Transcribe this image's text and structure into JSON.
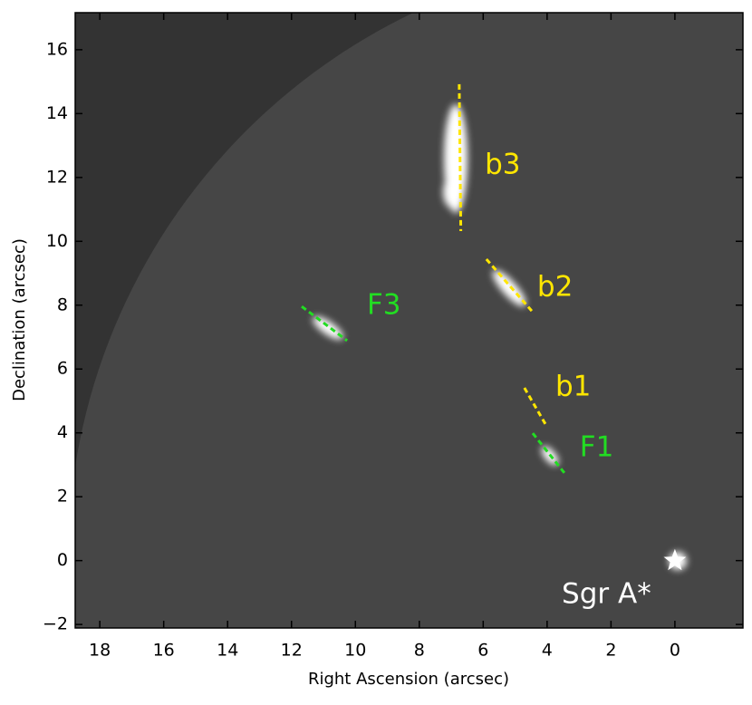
{
  "chart_data": {
    "type": "image",
    "xlabel": "Right Ascension (arcsec)",
    "ylabel": "Declination (arcsec)",
    "xlim": [
      18.77,
      -2.13
    ],
    "ylim": [
      -2.11,
      17.16
    ],
    "xticks": [
      18,
      16,
      14,
      12,
      10,
      8,
      6,
      4,
      2,
      0
    ],
    "yticks": [
      {
        "value": -2,
        "label": "−2"
      },
      0,
      2,
      4,
      6,
      8,
      10,
      12,
      14,
      16
    ],
    "lines": [
      {
        "x": [
          6.75,
          6.7
        ],
        "y": [
          14.92,
          10.32
        ],
        "color": "#ffe600"
      },
      {
        "x": [
          5.9,
          4.48
        ],
        "y": [
          9.44,
          7.82
        ],
        "color": "#ffe600"
      },
      {
        "x": [
          11.68,
          10.26
        ],
        "y": [
          7.96,
          6.89
        ],
        "color": "#22dd22"
      },
      {
        "x": [
          4.71,
          4.02
        ],
        "y": [
          5.41,
          4.22
        ],
        "color": "#ffe600"
      },
      {
        "x": [
          4.45,
          3.43
        ],
        "y": [
          3.99,
          2.71
        ],
        "color": "#22dd22"
      }
    ],
    "annotations": [
      {
        "text": "b3",
        "x": 5.95,
        "y": 12.37,
        "color": "#ffe600"
      },
      {
        "text": "b2",
        "x": 4.31,
        "y": 8.53,
        "color": "#ffe600"
      },
      {
        "text": "F3",
        "x": 9.64,
        "y": 7.96,
        "color": "#22dd22"
      },
      {
        "text": "b1",
        "x": 3.74,
        "y": 5.41,
        "color": "#ffe600"
      },
      {
        "text": "F1",
        "x": 2.98,
        "y": 3.51,
        "color": "#22dd22"
      },
      {
        "text": "Sgr A*",
        "x": 3.54,
        "y": -1.09,
        "color": "#ffffff"
      }
    ],
    "marker": {
      "x": 0,
      "y": 0,
      "color": "#ffffff"
    }
  }
}
